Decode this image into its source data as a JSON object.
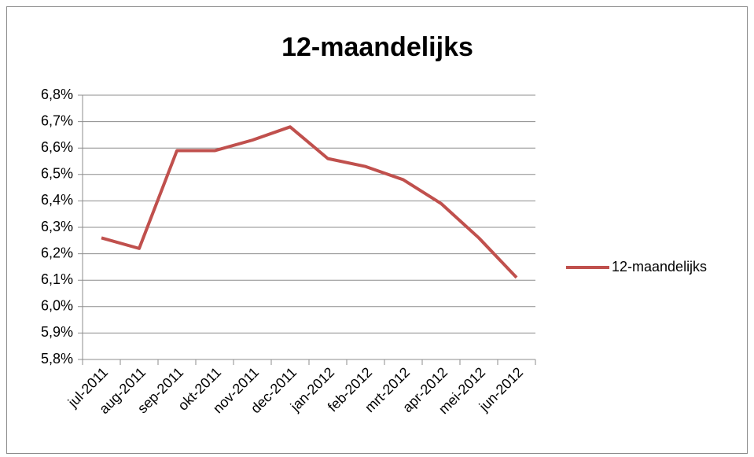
{
  "chart_data": {
    "type": "line",
    "title": "12-maandelijks",
    "categories": [
      "jul-2011",
      "aug-2011",
      "sep-2011",
      "okt-2011",
      "nov-2011",
      "dec-2011",
      "jan-2012",
      "feb-2012",
      "mrt-2012",
      "apr-2012",
      "mei-2012",
      "jun-2012"
    ],
    "series": [
      {
        "name": "12-maandelijks",
        "color": "#c0504d",
        "values": [
          6.26,
          6.22,
          6.59,
          6.59,
          6.63,
          6.68,
          6.56,
          6.53,
          6.48,
          6.39,
          6.26,
          6.11
        ]
      }
    ],
    "ylim": [
      5.8,
      6.8
    ],
    "yticks": [
      {
        "value": 5.8,
        "label": "5,8%"
      },
      {
        "value": 5.9,
        "label": "5,9%"
      },
      {
        "value": 6.0,
        "label": "6,0%"
      },
      {
        "value": 6.1,
        "label": "6,1%"
      },
      {
        "value": 6.2,
        "label": "6,2%"
      },
      {
        "value": 6.3,
        "label": "6,3%"
      },
      {
        "value": 6.4,
        "label": "6,4%"
      },
      {
        "value": 6.5,
        "label": "6,5%"
      },
      {
        "value": 6.6,
        "label": "6,6%"
      },
      {
        "value": 6.7,
        "label": "6,7%"
      },
      {
        "value": 6.8,
        "label": "6,8%"
      }
    ],
    "grid": true,
    "legend": "right"
  }
}
